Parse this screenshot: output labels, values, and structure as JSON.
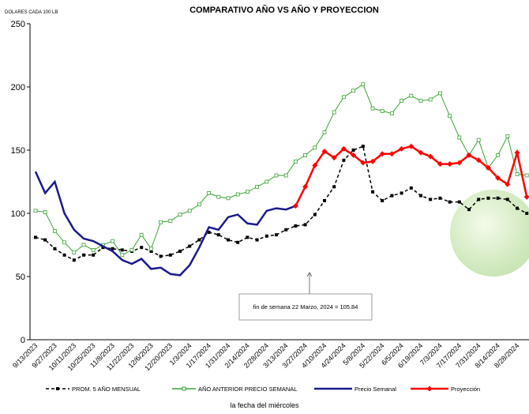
{
  "chart_data": {
    "type": "line",
    "title": "COMPARATIVO AÑO VS  AÑO Y PROYECCION",
    "y_label": "DOLARES CADA 100 LB",
    "x_label": "la fecha del miércoles",
    "annotation": "fin de semana 22 Marzo, 2024 = 105.84",
    "categories": [
      "9/13/2023",
      null,
      "9/27/2023",
      null,
      "10/11/2023",
      null,
      "10/25/2023",
      null,
      "11/8/2023",
      null,
      "11/22/2023",
      null,
      "12/6/2023",
      null,
      "12/20/2023",
      null,
      "1/3/2024",
      null,
      "1/17/2024",
      null,
      "1/31/2024",
      null,
      "2/14/2024",
      null,
      "2/28/2024",
      null,
      "3/13/2024",
      null,
      "3/27/2024",
      null,
      "4/10/2024",
      null,
      "4/24/2024",
      null,
      "5/8/2024",
      null,
      "5/22/2024",
      null,
      "6/5/2024",
      null,
      "6/19/2024",
      null,
      "7/3/2024",
      null,
      "7/17/2024",
      null,
      "7/31/2024",
      null,
      "8/14/2024",
      null,
      "8/28/2024",
      null
    ],
    "ylim": [
      0,
      250
    ],
    "yticks": [
      0,
      50,
      100,
      150,
      200,
      250
    ],
    "grid": false,
    "series": [
      {
        "name": "PROM. 5 AÑO MENSUAL",
        "color": "#000000",
        "marker": "square",
        "dash": true,
        "values": [
          81,
          79,
          72,
          67,
          63,
          67,
          67,
          73,
          72,
          71,
          70,
          73,
          70,
          66,
          67,
          70,
          74,
          79,
          85,
          83,
          79,
          77,
          81,
          79,
          82,
          83,
          87,
          90,
          91,
          99,
          110,
          121,
          142,
          150,
          153,
          117,
          110,
          114,
          116,
          120,
          114,
          111,
          112,
          109,
          109,
          103,
          111,
          112,
          112,
          111,
          104,
          100
        ]
      },
      {
        "name": "AÑO ANTERIOR PRECIO SEMANAL",
        "color": "#3aa335",
        "marker": "open-square",
        "dash": false,
        "values": [
          102,
          101,
          86,
          77,
          69,
          75,
          71,
          75,
          78,
          67,
          71,
          83,
          72,
          93,
          94,
          99,
          102,
          107,
          116,
          113,
          112,
          115,
          117,
          121,
          125,
          130,
          130,
          141,
          146,
          152,
          164,
          180,
          192,
          197,
          202,
          183,
          181,
          179,
          189,
          193,
          189,
          190,
          195,
          177,
          160,
          146,
          158,
          136,
          146,
          161,
          131,
          130
        ]
      },
      {
        "name": "Precio Semanal",
        "color": "#1a1a8c",
        "marker": "none",
        "dash": false,
        "values": [
          133,
          116,
          125,
          100,
          87,
          80,
          78,
          74,
          70,
          63,
          60,
          64,
          56,
          57,
          52,
          51,
          59,
          73,
          89,
          87,
          97,
          99,
          92,
          91,
          102,
          104,
          103,
          105.84,
          null,
          null,
          null,
          null,
          null,
          null,
          null,
          null,
          null,
          null,
          null,
          null,
          null,
          null,
          null,
          null,
          null,
          null,
          null,
          null,
          null,
          null,
          null,
          null
        ]
      },
      {
        "name": "Proyección",
        "color": "#ff0000",
        "marker": "diamond",
        "dash": false,
        "values": [
          null,
          null,
          null,
          null,
          null,
          null,
          null,
          null,
          null,
          null,
          null,
          null,
          null,
          null,
          null,
          null,
          null,
          null,
          null,
          null,
          null,
          null,
          null,
          null,
          null,
          null,
          null,
          105.84,
          121,
          138,
          149,
          144,
          151,
          146,
          140,
          141,
          147,
          147,
          151,
          153,
          148,
          145,
          139,
          139,
          140,
          146,
          142,
          136,
          128,
          123,
          148,
          113
        ]
      }
    ]
  }
}
